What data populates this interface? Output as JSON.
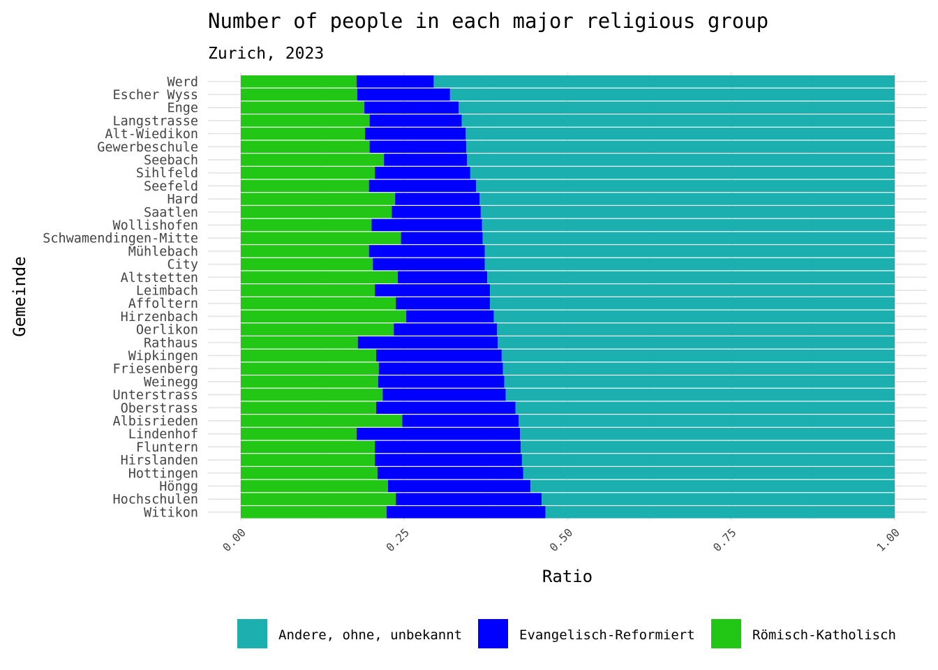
{
  "chart_data": {
    "type": "bar",
    "orientation": "horizontal",
    "stacked": true,
    "title": "Number of people in each major religious group",
    "subtitle": "Zurich, 2023",
    "xlabel": "Ratio",
    "ylabel": "Gemeinde",
    "xlim": [
      0,
      1
    ],
    "x_ticks": [
      "0.00",
      "0.25",
      "0.50",
      "0.75",
      "1.00"
    ],
    "grid": true,
    "legend_position": "bottom",
    "categories": [
      "Werd",
      "Escher Wyss",
      "Enge",
      "Langstrasse",
      "Alt-Wiedikon",
      "Gewerbeschule",
      "Seebach",
      "Sihlfeld",
      "Seefeld",
      "Hard",
      "Saatlen",
      "Wollishofen",
      "Schwamendingen-Mitte",
      "Mühlebach",
      "City",
      "Altstetten",
      "Leimbach",
      "Affoltern",
      "Hirzenbach",
      "Oerlikon",
      "Rathaus",
      "Wipkingen",
      "Friesenberg",
      "Weinegg",
      "Unterstrass",
      "Oberstrass",
      "Albisrieden",
      "Lindenhof",
      "Fluntern",
      "Hirslanden",
      "Hottingen",
      "Höngg",
      "Hochschulen",
      "Witikon"
    ],
    "series": [
      {
        "name": "Römisch-Katholisch",
        "color": "#22C716",
        "values": [
          0.177,
          0.178,
          0.189,
          0.197,
          0.19,
          0.197,
          0.219,
          0.205,
          0.196,
          0.236,
          0.231,
          0.2,
          0.245,
          0.196,
          0.202,
          0.24,
          0.205,
          0.237,
          0.253,
          0.234,
          0.179,
          0.207,
          0.211,
          0.21,
          0.217,
          0.207,
          0.247,
          0.177,
          0.205,
          0.205,
          0.209,
          0.225,
          0.237,
          0.223
        ]
      },
      {
        "name": "Evangelisch-Reformiert",
        "color": "#0000FF",
        "values": [
          0.118,
          0.142,
          0.144,
          0.141,
          0.154,
          0.148,
          0.127,
          0.146,
          0.164,
          0.129,
          0.136,
          0.169,
          0.125,
          0.177,
          0.171,
          0.137,
          0.176,
          0.144,
          0.134,
          0.158,
          0.214,
          0.192,
          0.19,
          0.193,
          0.188,
          0.213,
          0.178,
          0.25,
          0.223,
          0.225,
          0.223,
          0.218,
          0.223,
          0.243
        ]
      },
      {
        "name": "Andere, ohne, unbekannt",
        "color": "#1BAFB0",
        "values": [
          0.705,
          0.68,
          0.667,
          0.662,
          0.656,
          0.655,
          0.654,
          0.649,
          0.64,
          0.635,
          0.633,
          0.631,
          0.63,
          0.627,
          0.627,
          0.623,
          0.619,
          0.619,
          0.613,
          0.608,
          0.607,
          0.601,
          0.599,
          0.597,
          0.595,
          0.58,
          0.575,
          0.573,
          0.572,
          0.57,
          0.568,
          0.557,
          0.54,
          0.534
        ]
      }
    ],
    "legend": [
      "Andere, ohne, unbekannt",
      "Evangelisch-Reformiert",
      "Römisch-Katholisch"
    ]
  }
}
